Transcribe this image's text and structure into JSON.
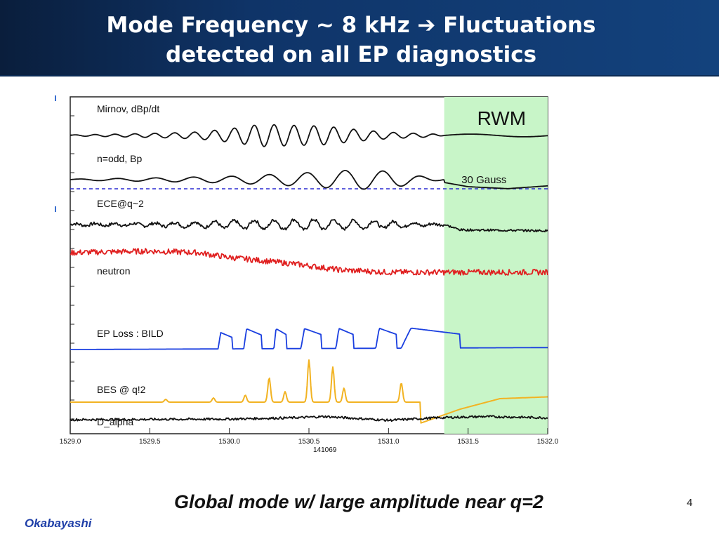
{
  "slide": {
    "title_line1": "Mode Frequency ~ 8 kHz ➔ Fluctuations",
    "title_line2": "detected on all EP diagnostics",
    "caption": "Global mode w/ large amplitude near q=2",
    "page_number": "4",
    "author": "Okabayashi"
  },
  "chart_data": {
    "type": "line",
    "xlim": [
      1529.0,
      1532.0
    ],
    "x_ticks": [
      "1529.0",
      "1529.5",
      "1530.0",
      "1530.5",
      "1531.0",
      "1531.5",
      "1532.0"
    ],
    "xlabel": "141069",
    "highlight": {
      "label": "RWM",
      "x_start": 1531.35,
      "x_end": 1532.0,
      "color": "#c8f5c8"
    },
    "reference_line": {
      "label": "30 Gauss",
      "color": "#2a2ad0"
    },
    "colors": {
      "black": "#111111",
      "red": "#e02020",
      "blue": "#1a3fe0",
      "orange": "#f2b322"
    },
    "series": [
      {
        "name": "Mirnov, dBp/dt",
        "color": "black",
        "kind": "osc",
        "baseline": 0.0,
        "amplitudes": [
          [
            1529.0,
            0.02
          ],
          [
            1529.3,
            0.05
          ],
          [
            1529.6,
            0.09
          ],
          [
            1529.8,
            0.13
          ],
          [
            1530.0,
            0.25
          ],
          [
            1530.2,
            0.42
          ],
          [
            1530.4,
            0.38
          ],
          [
            1530.6,
            0.35
          ],
          [
            1530.8,
            0.22
          ],
          [
            1531.0,
            0.12
          ],
          [
            1531.3,
            0.05
          ],
          [
            1531.35,
            0.0
          ],
          [
            1532.0,
            0.0
          ]
        ]
      },
      {
        "name": "n=odd, Bp",
        "color": "black",
        "kind": "osc_slow",
        "baseline": 0.0,
        "amplitudes": [
          [
            1529.0,
            0.02
          ],
          [
            1529.5,
            0.06
          ],
          [
            1530.0,
            0.12
          ],
          [
            1530.4,
            0.22
          ],
          [
            1530.8,
            0.35
          ],
          [
            1531.0,
            0.3
          ],
          [
            1531.35,
            0.0
          ]
        ],
        "tail": [
          [
            1531.35,
            -0.1
          ],
          [
            1531.5,
            -0.25
          ],
          [
            1531.75,
            -0.32
          ],
          [
            1532.0,
            -0.22
          ]
        ]
      },
      {
        "name": "ECE@q~2",
        "color": "black",
        "kind": "osc_noisy",
        "baseline": 0.0,
        "amplitudes": [
          [
            1529.0,
            0.05
          ],
          [
            1529.5,
            0.08
          ],
          [
            1530.0,
            0.22
          ],
          [
            1530.5,
            0.3
          ],
          [
            1530.9,
            0.22
          ],
          [
            1531.2,
            0.1
          ],
          [
            1531.35,
            0.0
          ]
        ],
        "tail": [
          [
            1531.35,
            0.0
          ],
          [
            1531.45,
            -0.3
          ],
          [
            1532.0,
            -0.35
          ]
        ]
      },
      {
        "name": "neutron",
        "color": "red",
        "kind": "noisy_trend",
        "trend": [
          [
            1529.0,
            0.0
          ],
          [
            1529.5,
            0.05
          ],
          [
            1529.8,
            0.0
          ],
          [
            1530.0,
            -0.15
          ],
          [
            1530.4,
            -0.35
          ],
          [
            1530.7,
            -0.55
          ],
          [
            1531.0,
            -0.62
          ],
          [
            1532.0,
            -0.62
          ]
        ]
      },
      {
        "name": "EP Loss : BILD",
        "color": "blue",
        "kind": "pulses",
        "pulses": [
          [
            1529.93,
            1530.02,
            0.45
          ],
          [
            1530.09,
            1530.2,
            0.55
          ],
          [
            1530.28,
            1530.36,
            0.55
          ],
          [
            1530.45,
            1530.58,
            0.55
          ],
          [
            1530.67,
            1530.78,
            0.55
          ],
          [
            1530.92,
            1531.05,
            0.55
          ],
          [
            1531.08,
            1531.45,
            0.55
          ]
        ],
        "baseline_start": 0.0,
        "baseline_end": 0.05
      },
      {
        "name": "BES @ q!2",
        "color": "orange",
        "kind": "spikes",
        "spikes": [
          [
            1529.6,
            0.08
          ],
          [
            1529.9,
            0.12
          ],
          [
            1530.1,
            0.2
          ],
          [
            1530.25,
            0.7
          ],
          [
            1530.35,
            0.3
          ],
          [
            1530.5,
            1.2
          ],
          [
            1530.65,
            1.0
          ],
          [
            1530.72,
            0.4
          ],
          [
            1531.08,
            0.55
          ]
        ],
        "tail": [
          [
            1531.2,
            -0.6
          ],
          [
            1531.45,
            -0.2
          ],
          [
            1531.7,
            0.1
          ],
          [
            1532.0,
            0.15
          ]
        ]
      },
      {
        "name": "D_alpha",
        "color": "black",
        "kind": "noisy_trend",
        "trend": [
          [
            1529.0,
            0.0
          ],
          [
            1530.0,
            0.05
          ],
          [
            1530.4,
            0.15
          ],
          [
            1530.6,
            0.25
          ],
          [
            1531.0,
            -0.05
          ],
          [
            1531.3,
            0.15
          ],
          [
            1531.6,
            0.25
          ],
          [
            1532.0,
            0.15
          ]
        ]
      }
    ]
  }
}
